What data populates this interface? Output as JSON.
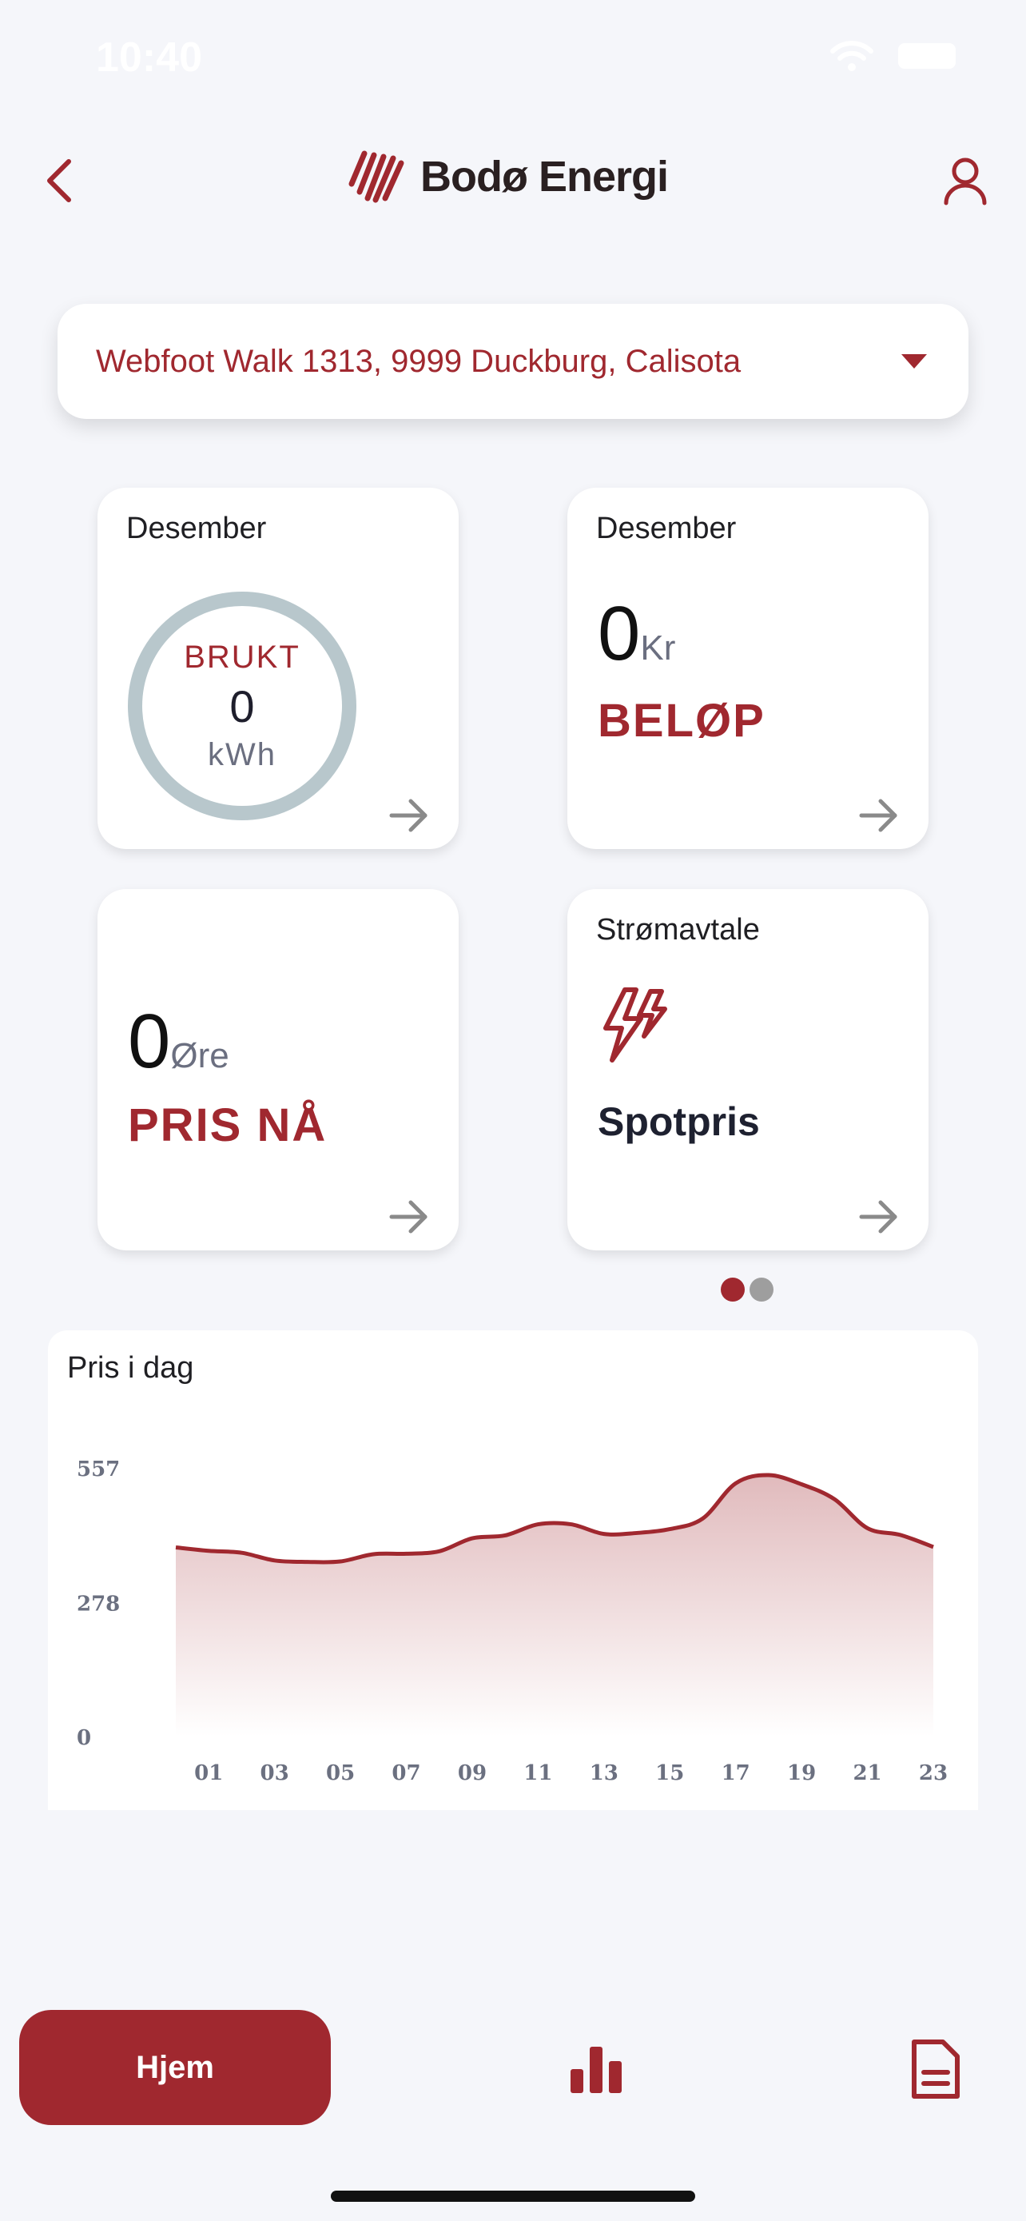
{
  "status": {
    "time": "10:40"
  },
  "header": {
    "brand": "Bodø Energi"
  },
  "address": {
    "selected": "Webfoot Walk 1313, 9999 Duckburg, Calisota"
  },
  "cards": {
    "usage": {
      "month": "Desember",
      "label": "BRUKT",
      "value": "0",
      "unit": "kWh"
    },
    "amount": {
      "month": "Desember",
      "value": "0",
      "unit": "Kr",
      "caption": "BELØP"
    },
    "price_now": {
      "value": "0",
      "unit": "Øre",
      "caption": "PRIS NÅ"
    },
    "agreement": {
      "label": "Strømavtale",
      "value": "Spotpris"
    }
  },
  "pager": {
    "active": 0,
    "count": 2
  },
  "colors": {
    "accent": "#a0282f",
    "ring": "#b8c7cc",
    "pager_inactive": "#9e9e9e"
  },
  "chart_data": {
    "type": "area",
    "title": "Pris i dag",
    "x": [
      "00",
      "01",
      "02",
      "03",
      "04",
      "05",
      "06",
      "07",
      "08",
      "09",
      "10",
      "11",
      "12",
      "13",
      "14",
      "15",
      "16",
      "17",
      "18",
      "19",
      "20",
      "21",
      "22",
      "23"
    ],
    "x_tick_labels": [
      "01",
      "03",
      "05",
      "07",
      "09",
      "11",
      "13",
      "15",
      "17",
      "19",
      "21",
      "23"
    ],
    "values": [
      392,
      385,
      381,
      365,
      362,
      363,
      378,
      379,
      384,
      411,
      417,
      440,
      440,
      420,
      422,
      430,
      452,
      525,
      542,
      523,
      492,
      432,
      418,
      393
    ],
    "y_tick_labels": [
      "557",
      "278",
      "0"
    ],
    "ylim": [
      0,
      557
    ],
    "grid": false,
    "legend": "none"
  },
  "tabs": {
    "home_label": "Hjem",
    "active": "home"
  }
}
